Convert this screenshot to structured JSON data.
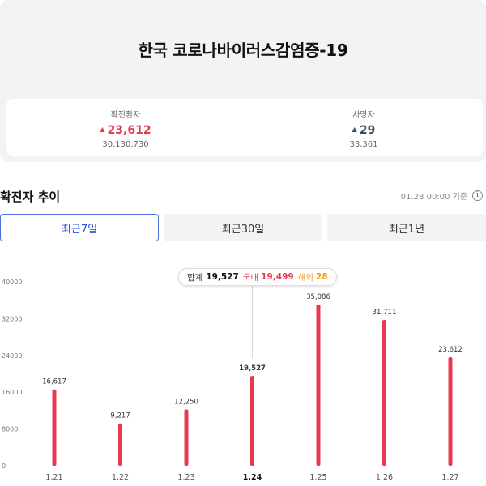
{
  "summary": {
    "title": "한국 코로나바이러스감염증-19",
    "confirmed": {
      "label": "확진환자",
      "change": "23,612",
      "total": "30,130,730"
    },
    "deaths": {
      "label": "사망자",
      "change": "29",
      "total": "33,361"
    },
    "arrow": "▲"
  },
  "trend": {
    "title": "확진자 추이",
    "updated": "01.28 00:00 기준",
    "info_icon": "i"
  },
  "tabs": [
    {
      "label": "최근7일",
      "active": true
    },
    {
      "label": "최근30일",
      "active": false
    },
    {
      "label": "최근1년",
      "active": false
    }
  ],
  "tooltip": {
    "total_label": "합계",
    "total": "19,527",
    "domestic_label": "국내",
    "domestic": "19,499",
    "overseas_label": "해외",
    "overseas": "28"
  },
  "colors": {
    "bar": "#e8384f",
    "accent": "#2d55d8",
    "overseas": "#f09a27"
  },
  "chart_data": {
    "type": "bar",
    "categories": [
      "1.21",
      "1.22",
      "1.23",
      "1.24",
      "1.25",
      "1.26",
      "1.27"
    ],
    "values": [
      16617,
      9217,
      12250,
      19527,
      35086,
      31711,
      23612
    ],
    "value_labels": [
      "16,617",
      "9,217",
      "12,250",
      "19,527",
      "35,086",
      "31,711",
      "23,612"
    ],
    "highlight_index": 3,
    "y_ticks": [
      0,
      8000,
      16000,
      24000,
      32000,
      40000
    ],
    "ylim": [
      0,
      40000
    ],
    "grid": false
  }
}
